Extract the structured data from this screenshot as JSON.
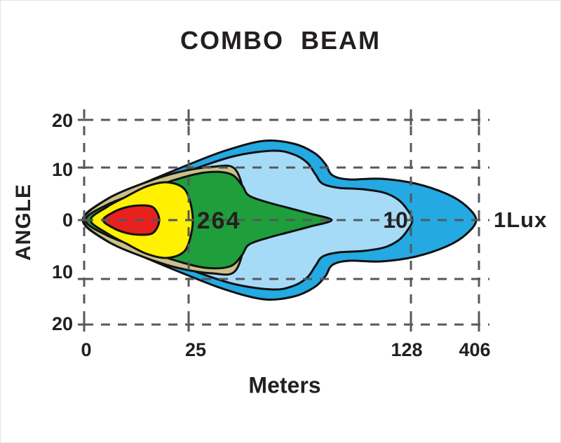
{
  "title": "COMBO  BEAM",
  "axes": {
    "y_title": "ANGLE",
    "x_title": "Meters",
    "y_ticks": [
      "20",
      "10",
      "0",
      "10",
      "20"
    ],
    "x_ticks": [
      "0",
      "25",
      "128",
      "406"
    ]
  },
  "annotations": {
    "at_25m": "264",
    "at_128m": "10",
    "at_406m": "1Lux"
  },
  "colors": {
    "outer_blue": "#24A9E2",
    "light_blue": "#A6DBF8",
    "khaki": "#C8C289",
    "green": "#1F9E3C",
    "yellow": "#FFF100",
    "red": "#E8211F",
    "grid": "#55585C",
    "outline": "#111111",
    "text": "#231F20"
  },
  "chart_data": {
    "type": "area",
    "subtype": "photometric-beam-contour",
    "title": "COMBO BEAM",
    "xlabel": "Meters",
    "ylabel": "ANGLE",
    "x_tick_values": [
      0,
      25,
      128,
      406
    ],
    "y_tick_values": [
      20,
      10,
      0,
      10,
      20
    ],
    "grid": "dashed",
    "illuminance_annotations": [
      {
        "distance_m": 25,
        "label": "264"
      },
      {
        "distance_m": 128,
        "label": "10"
      },
      {
        "distance_m": 406,
        "label": "1Lux"
      }
    ],
    "contours": [
      {
        "name": "blue-outer",
        "color": "#24A9E2",
        "points": [
          [
            117,
            313
          ],
          [
            150,
            284
          ],
          [
            200,
            262
          ],
          [
            265,
            235
          ],
          [
            320,
            214
          ],
          [
            375,
            200
          ],
          [
            418,
            204
          ],
          [
            447,
            217
          ],
          [
            463,
            233
          ],
          [
            473,
            249
          ],
          [
            497,
            255
          ],
          [
            542,
            254
          ],
          [
            592,
            261
          ],
          [
            637,
            276
          ],
          [
            664,
            293
          ],
          [
            678,
            313
          ],
          [
            664,
            333
          ],
          [
            637,
            350
          ],
          [
            592,
            365
          ],
          [
            542,
            372
          ],
          [
            497,
            371
          ],
          [
            473,
            377
          ],
          [
            463,
            393
          ],
          [
            447,
            409
          ],
          [
            418,
            422
          ],
          [
            375,
            426
          ],
          [
            320,
            412
          ],
          [
            265,
            391
          ],
          [
            200,
            364
          ],
          [
            150,
            342
          ]
        ]
      },
      {
        "name": "light-blue",
        "color": "#A6DBF8",
        "points": [
          [
            120,
            313
          ],
          [
            158,
            287
          ],
          [
            208,
            266
          ],
          [
            268,
            243
          ],
          [
            332,
            222
          ],
          [
            388,
            214
          ],
          [
            417,
            219
          ],
          [
            437,
            231
          ],
          [
            449,
            248
          ],
          [
            459,
            261
          ],
          [
            482,
            267
          ],
          [
            517,
            269
          ],
          [
            547,
            274
          ],
          [
            567,
            284
          ],
          [
            579,
            297
          ],
          [
            587,
            313
          ],
          [
            579,
            329
          ],
          [
            567,
            342
          ],
          [
            547,
            352
          ],
          [
            517,
            357
          ],
          [
            482,
            359
          ],
          [
            459,
            365
          ],
          [
            449,
            378
          ],
          [
            437,
            395
          ],
          [
            417,
            407
          ],
          [
            388,
            412
          ],
          [
            332,
            404
          ],
          [
            268,
            383
          ],
          [
            208,
            360
          ],
          [
            158,
            339
          ]
        ]
      },
      {
        "name": "khaki",
        "color": "#C8C289",
        "points": [
          [
            118,
            313
          ],
          [
            152,
            283
          ],
          [
            202,
            261
          ],
          [
            252,
            245
          ],
          [
            302,
            237
          ],
          [
            334,
            240
          ],
          [
            348,
            285
          ],
          [
            348,
            341
          ],
          [
            334,
            386
          ],
          [
            302,
            389
          ],
          [
            252,
            381
          ],
          [
            202,
            365
          ],
          [
            152,
            343
          ]
        ]
      },
      {
        "name": "green",
        "color": "#1F9E3C",
        "points": [
          [
            121,
            313
          ],
          [
            152,
            291
          ],
          [
            202,
            272
          ],
          [
            247,
            256
          ],
          [
            292,
            245
          ],
          [
            327,
            247
          ],
          [
            344,
            263
          ],
          [
            354,
            278
          ],
          [
            382,
            288
          ],
          [
            412,
            296
          ],
          [
            442,
            304
          ],
          [
            472,
            313
          ],
          [
            442,
            322
          ],
          [
            412,
            330
          ],
          [
            382,
            338
          ],
          [
            354,
            348
          ],
          [
            344,
            363
          ],
          [
            327,
            379
          ],
          [
            292,
            381
          ],
          [
            247,
            370
          ],
          [
            202,
            354
          ],
          [
            152,
            335
          ]
        ]
      },
      {
        "name": "yellow",
        "color": "#FFF100",
        "points": [
          [
            128,
            313
          ],
          [
            152,
            294
          ],
          [
            178,
            280
          ],
          [
            208,
            265
          ],
          [
            236,
            259
          ],
          [
            259,
            266
          ],
          [
            269,
            283
          ],
          [
            274,
            313
          ],
          [
            269,
            343
          ],
          [
            259,
            360
          ],
          [
            236,
            367
          ],
          [
            208,
            361
          ],
          [
            178,
            346
          ],
          [
            152,
            332
          ]
        ]
      },
      {
        "name": "red-hotspot",
        "color": "#E8211F",
        "points": [
          [
            146,
            313
          ],
          [
            162,
            301
          ],
          [
            182,
            294
          ],
          [
            202,
            292
          ],
          [
            216,
            294
          ],
          [
            223,
            302
          ],
          [
            226,
            313
          ],
          [
            223,
            324
          ],
          [
            216,
            332
          ],
          [
            202,
            334
          ],
          [
            182,
            332
          ],
          [
            162,
            325
          ]
        ]
      }
    ]
  }
}
